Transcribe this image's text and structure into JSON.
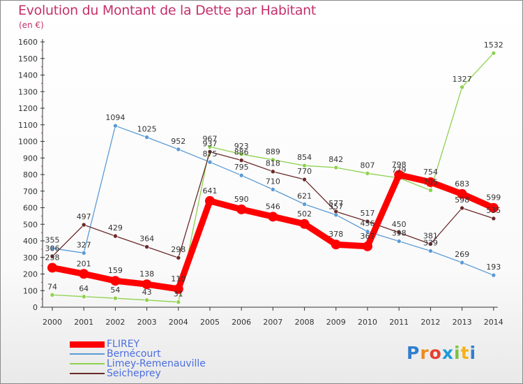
{
  "chart_data": {
    "type": "line",
    "title": "Evolution du Montant de la Dette par Habitant",
    "subtitle": "(en €)",
    "x": [
      "2000",
      "2001",
      "2002",
      "2003",
      "2004",
      "2005",
      "2006",
      "2007",
      "2008",
      "2009",
      "2010",
      "2011",
      "2012",
      "2013",
      "2014"
    ],
    "ylim": [
      0,
      1600
    ],
    "yticks": [
      0,
      100,
      200,
      300,
      400,
      500,
      600,
      700,
      800,
      900,
      1000,
      1100,
      1200,
      1300,
      1400,
      1500,
      1600
    ],
    "grid": false,
    "legend_placement": "bottom-left",
    "series": [
      {
        "name": "FLIREY",
        "color": "#ff0000",
        "width": 9,
        "marker": 7,
        "values": [
          238,
          201,
          159,
          138,
          110,
          641,
          590,
          546,
          502,
          378,
          367,
          798,
          754,
          683,
          599
        ]
      },
      {
        "name": "Bernécourt",
        "color": "#5b9bd5",
        "width": 1.3,
        "marker": 3,
        "values": [
          355,
          327,
          1094,
          1025,
          952,
          875,
          795,
          710,
          621,
          557,
          456,
          398,
          339,
          269,
          193
        ]
      },
      {
        "name": "Limey-Remenauville",
        "color": "#8fd14f",
        "width": 1.3,
        "marker": 3,
        "values": [
          74,
          64,
          54,
          43,
          31,
          967,
          923,
          889,
          854,
          842,
          807,
          779,
          705,
          1327,
          1532
        ]
      },
      {
        "name": "Seicheprey",
        "color": "#6b2a2a",
        "width": 1.3,
        "marker": 3,
        "values": [
          306,
          497,
          429,
          364,
          298,
          937,
          886,
          818,
          770,
          577,
          517,
          450,
          381,
          598,
          535
        ]
      }
    ]
  },
  "logo": {
    "letters": [
      "P",
      "r",
      "o",
      "x",
      "i",
      "t",
      "i"
    ],
    "colors": [
      "#2f7fcf",
      "#f08a1c",
      "#e83e2e",
      "#1f9bd8",
      "#7cc142",
      "#f7b21b",
      "#2f7fcf"
    ]
  }
}
